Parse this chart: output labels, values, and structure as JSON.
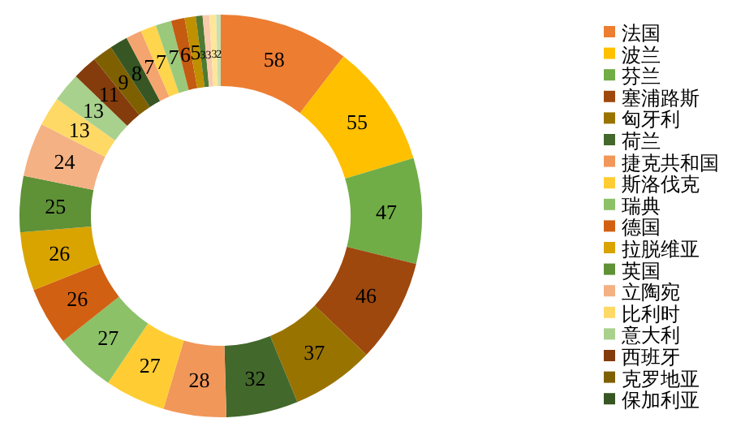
{
  "chart_data": {
    "type": "donut",
    "legend": "right",
    "data_labels": true,
    "categories": [
      "法国",
      "波兰",
      "芬兰",
      "塞浦路斯",
      "匈牙利",
      "荷兰",
      "捷克共和国",
      "斯洛伐克",
      "瑞典",
      "德国",
      "拉脱维亚",
      "英国",
      "立陶宛",
      "比利时",
      "意大利",
      "西班牙",
      "克罗地亚",
      "保加利亚",
      null,
      null,
      null,
      null,
      null,
      null,
      null,
      null,
      null
    ],
    "values": [
      58,
      55,
      47,
      46,
      37,
      32,
      28,
      27,
      27,
      26,
      26,
      25,
      24,
      13,
      13,
      11,
      9,
      8,
      7,
      7,
      7,
      6,
      5,
      3,
      3,
      3,
      2
    ],
    "colors": [
      "#ed7d31",
      "#ffc000",
      "#70ad47",
      "#9e480e",
      "#997300",
      "#43682b",
      "#f1975a",
      "#ffcd33",
      "#8cc168",
      "#d26012",
      "#d9a300",
      "#5f9137",
      "#f4b183",
      "#ffd966",
      "#a9d18e",
      "#843c0c",
      "#7f6000",
      "#375623",
      "#f4a46f",
      "#ffd54d",
      "#9bc97b",
      "#c55a11",
      "#bf9000",
      "#4e7a31",
      "#f8cbad",
      "#ffe699",
      "#c5e0b4"
    ]
  }
}
